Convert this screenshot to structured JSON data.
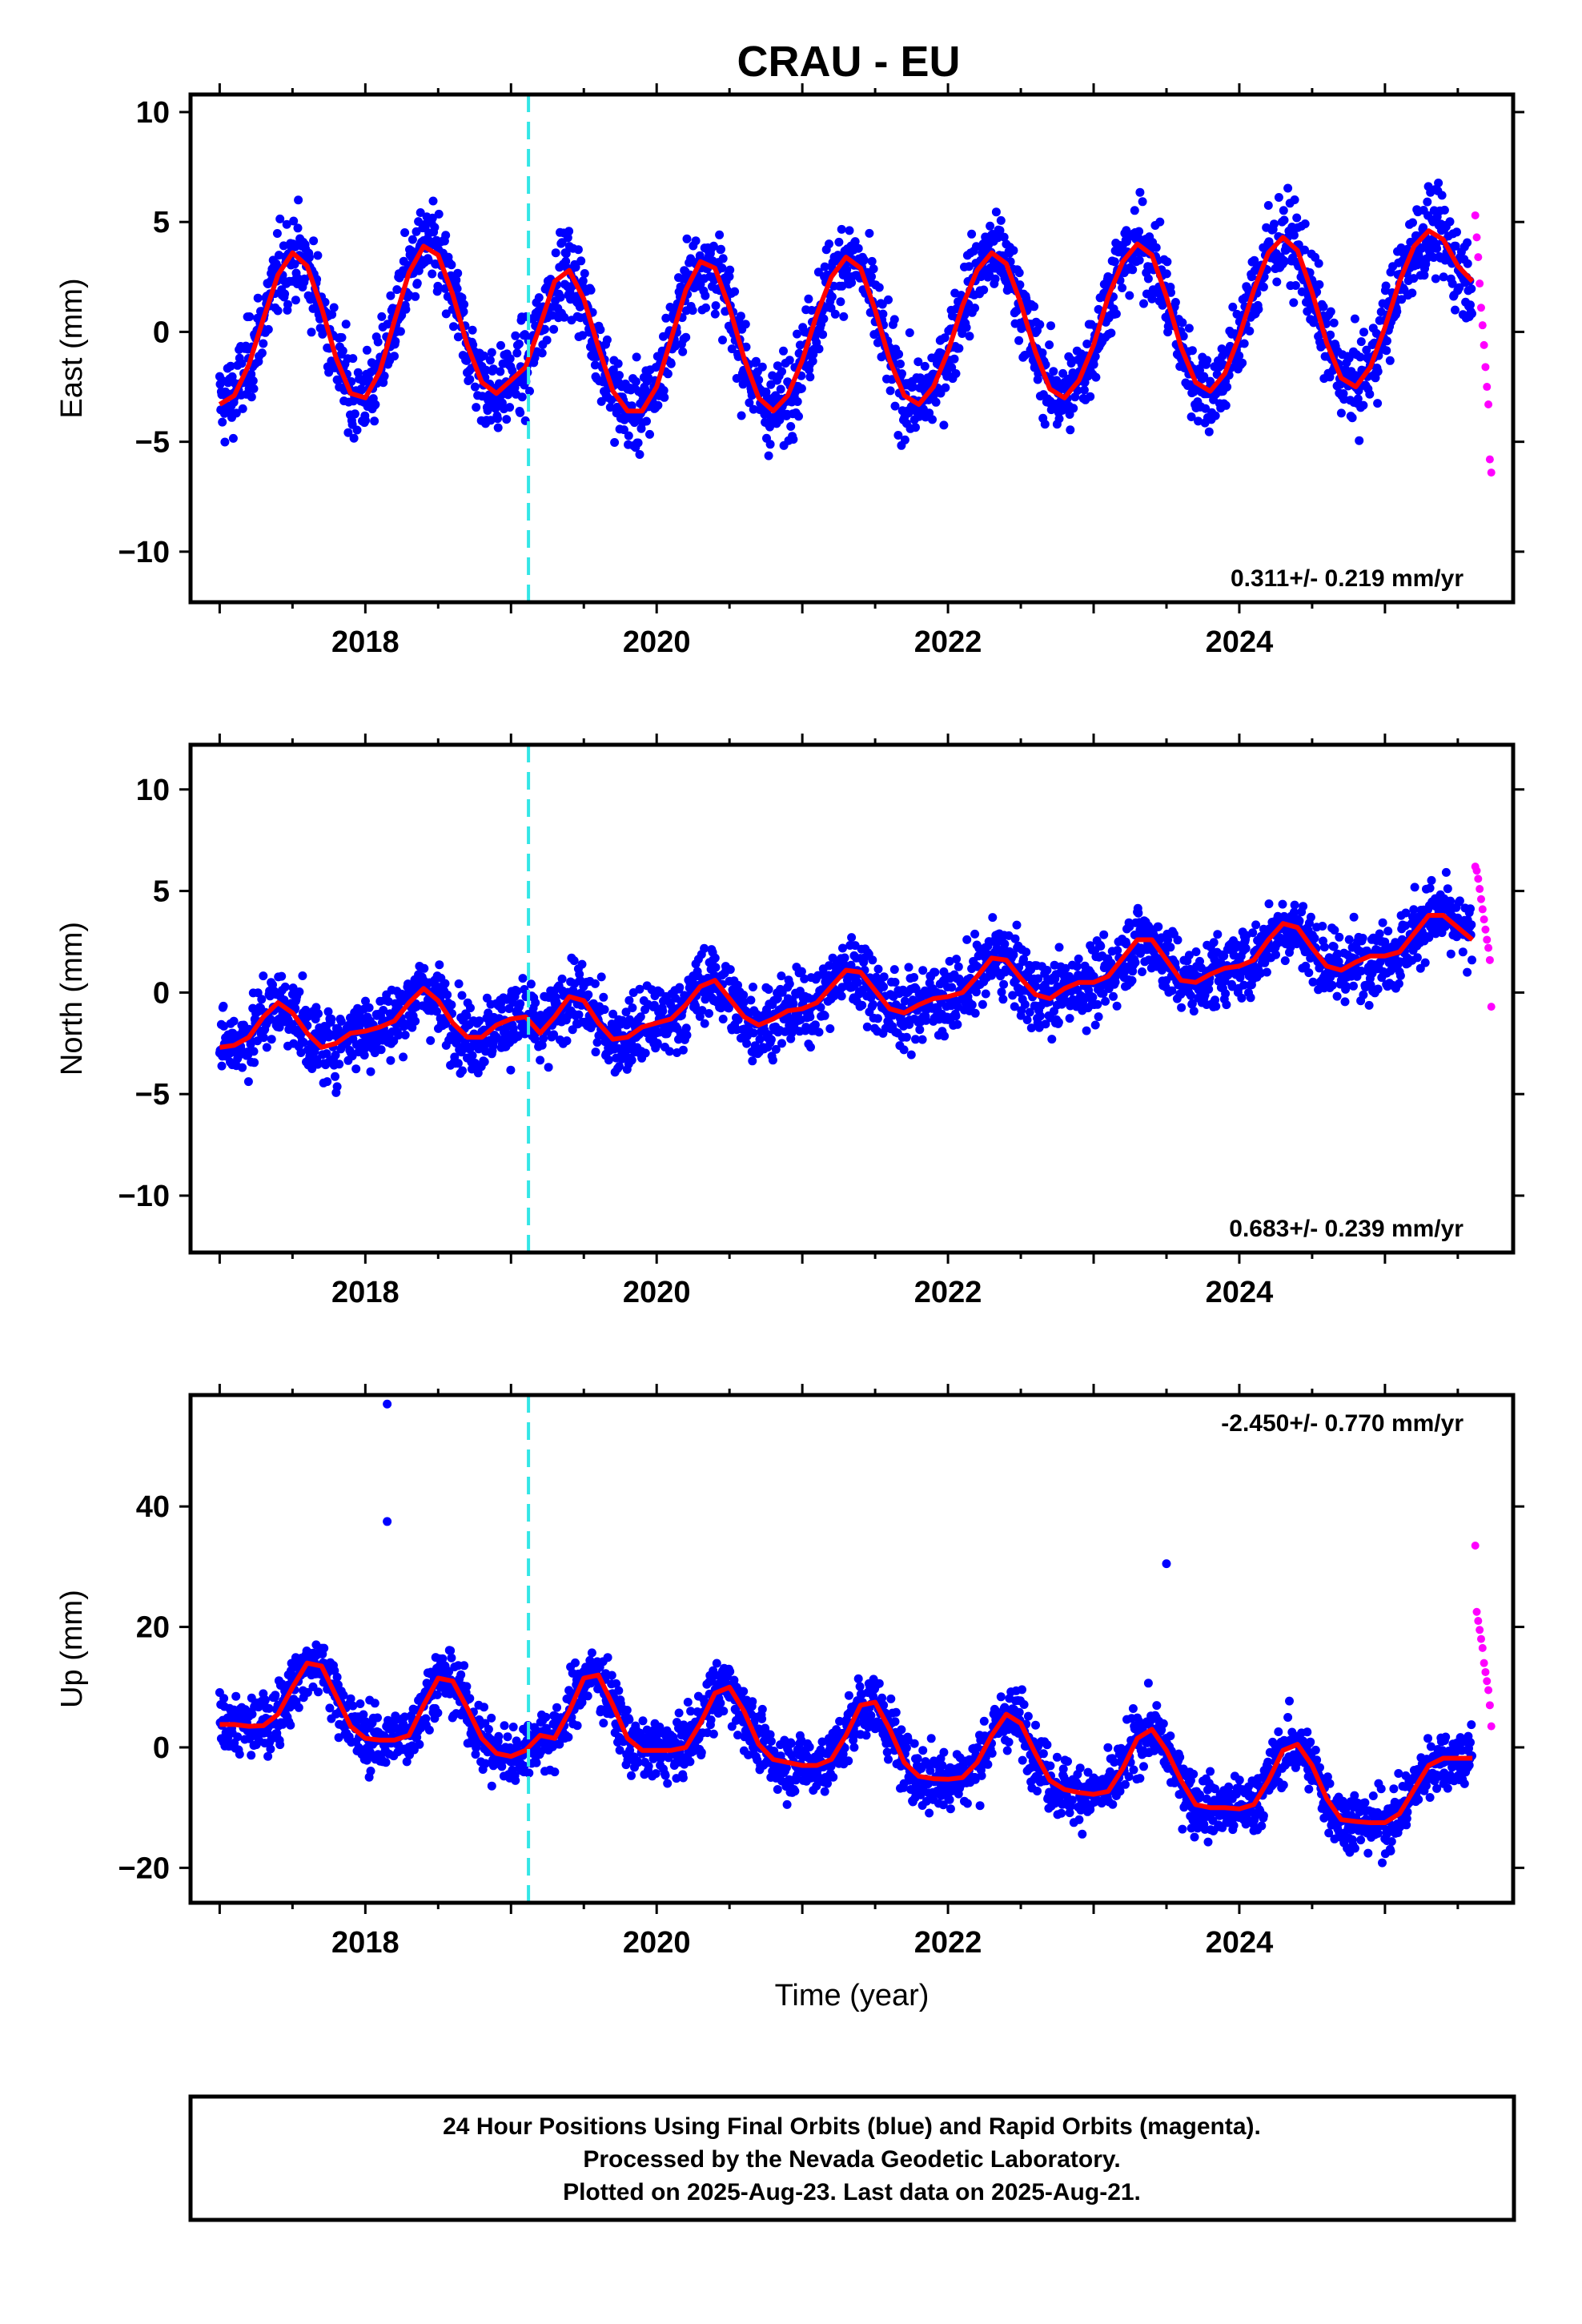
{
  "title": "CRAU - EU",
  "footer": {
    "line1": "24 Hour Positions Using Final Orbits (blue) and Rapid Orbits (magenta).",
    "line2": "Processed by the Nevada Geodetic Laboratory.",
    "line3": "Plotted on 2025-Aug-23. Last data on 2025-Aug-21."
  },
  "colors": {
    "final_orbits": "#0000ff",
    "rapid_orbits": "#ff00ff",
    "model_fit": "#ff0000",
    "equipment_change": "#33e6e6"
  },
  "chart_data": [
    {
      "type": "scatter",
      "name": "east",
      "ylabel": "East (mm)",
      "xlabel": "",
      "xlim": [
        2016.8,
        2025.88
      ],
      "ylim": [
        -12.3,
        10.8
      ],
      "x_ticks": [
        2018,
        2020,
        2022,
        2024
      ],
      "x_tick_labels": [
        "2018",
        "2020",
        "2022",
        "2024"
      ],
      "y_ticks": [
        -10,
        -5,
        0,
        5,
        10
      ],
      "y_tick_labels": [
        "−10",
        "−5",
        "0",
        "5",
        "10"
      ],
      "rate_label": "0.311+/- 0.219 mm/yr",
      "rate_position": "bottom-right",
      "equipment_change_x": 2019.12,
      "model": {
        "trend_mm_per_yr": 0.311,
        "fit_x": [
          2017.0,
          2017.1,
          2017.2,
          2017.3,
          2017.4,
          2017.5,
          2017.6,
          2017.7,
          2017.8,
          2017.9,
          2018.0,
          2018.1,
          2018.2,
          2018.3,
          2018.4,
          2018.5,
          2018.6,
          2018.7,
          2018.8,
          2018.9,
          2019.0,
          2019.1,
          2019.2,
          2019.3,
          2019.4,
          2019.5,
          2019.6,
          2019.7,
          2019.8,
          2019.9,
          2020.0,
          2020.1,
          2020.2,
          2020.3,
          2020.4,
          2020.5,
          2020.6,
          2020.7,
          2020.8,
          2020.9,
          2021.0,
          2021.1,
          2021.2,
          2021.3,
          2021.4,
          2021.5,
          2021.6,
          2021.7,
          2021.8,
          2021.9,
          2022.0,
          2022.1,
          2022.2,
          2022.3,
          2022.4,
          2022.5,
          2022.6,
          2022.7,
          2022.8,
          2022.9,
          2023.0,
          2023.1,
          2023.2,
          2023.3,
          2023.4,
          2023.5,
          2023.6,
          2023.7,
          2023.8,
          2023.9,
          2024.0,
          2024.1,
          2024.2,
          2024.3,
          2024.4,
          2024.5,
          2024.6,
          2024.7,
          2024.8,
          2024.9,
          2025.0,
          2025.1,
          2025.2,
          2025.3,
          2025.4,
          2025.5,
          2025.6
        ],
        "fit_y": [
          -3.3,
          -2.9,
          -1.5,
          0.6,
          2.6,
          3.6,
          3.0,
          1.1,
          -1.2,
          -2.8,
          -3.0,
          -1.8,
          0.5,
          2.7,
          3.9,
          3.5,
          1.7,
          -0.6,
          -2.3,
          -2.8,
          -2.2,
          -1.6,
          0.3,
          2.3,
          2.8,
          1.5,
          -0.7,
          -2.7,
          -3.6,
          -3.6,
          -2.5,
          -0.3,
          1.9,
          3.2,
          2.9,
          1.1,
          -1.2,
          -3.0,
          -3.6,
          -2.9,
          -1.3,
          0.8,
          2.5,
          3.4,
          2.9,
          1.0,
          -1.3,
          -2.9,
          -3.3,
          -2.5,
          -0.9,
          1.2,
          2.8,
          3.6,
          3.1,
          1.3,
          -0.9,
          -2.6,
          -3.0,
          -2.2,
          -0.6,
          1.6,
          3.2,
          4.0,
          3.5,
          1.6,
          -0.7,
          -2.3,
          -2.7,
          -1.9,
          -0.2,
          1.9,
          3.6,
          4.3,
          3.7,
          1.8,
          -0.5,
          -2.1,
          -2.5,
          -1.6,
          0.2,
          2.3,
          3.9,
          4.6,
          4.2,
          3.0,
          2.3
        ]
      },
      "rapid_orbits": {
        "x": [
          2025.62,
          2025.63,
          2025.64,
          2025.65,
          2025.66,
          2025.67,
          2025.68,
          2025.69,
          2025.7,
          2025.71,
          2025.72,
          2025.73
        ],
        "y": [
          5.3,
          4.3,
          3.4,
          2.2,
          1.1,
          0.3,
          -0.6,
          -1.6,
          -2.5,
          -3.3,
          -5.8,
          -6.4
        ]
      }
    },
    {
      "type": "scatter",
      "name": "north",
      "ylabel": "North (mm)",
      "xlabel": "",
      "xlim": [
        2016.8,
        2025.88
      ],
      "ylim": [
        -12.8,
        12.2
      ],
      "x_ticks": [
        2018,
        2020,
        2022,
        2024
      ],
      "x_tick_labels": [
        "2018",
        "2020",
        "2022",
        "2024"
      ],
      "y_ticks": [
        -10,
        -5,
        0,
        5,
        10
      ],
      "y_tick_labels": [
        "−10",
        "−5",
        "0",
        "5",
        "10"
      ],
      "rate_label": "0.683+/- 0.239 mm/yr",
      "rate_position": "bottom-right",
      "equipment_change_x": 2019.12,
      "model": {
        "trend_mm_per_yr": 0.683,
        "fit_x": [
          2017.0,
          2017.1,
          2017.2,
          2017.3,
          2017.4,
          2017.5,
          2017.6,
          2017.7,
          2017.8,
          2017.9,
          2018.0,
          2018.1,
          2018.2,
          2018.3,
          2018.4,
          2018.5,
          2018.6,
          2018.7,
          2018.8,
          2018.9,
          2019.0,
          2019.1,
          2019.2,
          2019.3,
          2019.4,
          2019.5,
          2019.6,
          2019.7,
          2019.8,
          2019.9,
          2020.0,
          2020.1,
          2020.2,
          2020.3,
          2020.4,
          2020.5,
          2020.6,
          2020.7,
          2020.8,
          2020.9,
          2021.0,
          2021.1,
          2021.2,
          2021.3,
          2021.4,
          2021.5,
          2021.6,
          2021.7,
          2021.8,
          2021.9,
          2022.0,
          2022.1,
          2022.2,
          2022.3,
          2022.4,
          2022.5,
          2022.6,
          2022.7,
          2022.8,
          2022.9,
          2023.0,
          2023.1,
          2023.2,
          2023.3,
          2023.4,
          2023.5,
          2023.6,
          2023.7,
          2023.8,
          2023.9,
          2024.0,
          2024.1,
          2024.2,
          2024.3,
          2024.4,
          2024.5,
          2024.6,
          2024.7,
          2024.8,
          2024.9,
          2025.0,
          2025.1,
          2025.2,
          2025.3,
          2025.4,
          2025.5,
          2025.6
        ],
        "fit_y": [
          -2.7,
          -2.6,
          -2.2,
          -1.2,
          -0.5,
          -1.0,
          -2.0,
          -2.7,
          -2.5,
          -2.0,
          -1.9,
          -1.7,
          -1.4,
          -0.5,
          0.2,
          -0.4,
          -1.5,
          -2.2,
          -2.2,
          -1.6,
          -1.3,
          -1.2,
          -2.0,
          -1.2,
          -0.2,
          -0.4,
          -1.5,
          -2.3,
          -2.2,
          -1.7,
          -1.5,
          -1.3,
          -0.6,
          0.3,
          0.6,
          -0.3,
          -1.2,
          -1.6,
          -1.3,
          -0.9,
          -0.8,
          -0.5,
          0.3,
          1.1,
          1.0,
          0.1,
          -0.8,
          -1.0,
          -0.6,
          -0.3,
          -0.2,
          0.0,
          0.8,
          1.7,
          1.6,
          0.7,
          -0.1,
          -0.3,
          0.2,
          0.5,
          0.5,
          0.8,
          1.7,
          2.6,
          2.6,
          1.6,
          0.6,
          0.5,
          0.9,
          1.2,
          1.3,
          1.6,
          2.6,
          3.4,
          3.2,
          2.2,
          1.3,
          1.1,
          1.5,
          1.8,
          1.8,
          2.0,
          2.9,
          3.8,
          3.8,
          3.2,
          2.6
        ]
      },
      "rapid_orbits": {
        "x": [
          2025.62,
          2025.63,
          2025.64,
          2025.65,
          2025.66,
          2025.67,
          2025.68,
          2025.69,
          2025.7,
          2025.71,
          2025.72,
          2025.73
        ],
        "y": [
          6.2,
          6.0,
          5.6,
          5.1,
          4.6,
          4.1,
          3.6,
          3.1,
          2.6,
          2.2,
          1.6,
          -0.7
        ]
      }
    },
    {
      "type": "scatter",
      "name": "up",
      "ylabel": "Up (mm)",
      "xlabel": "Time (year)",
      "xlim": [
        2016.8,
        2025.88
      ],
      "ylim": [
        -25.8,
        58.5
      ],
      "x_ticks": [
        2018,
        2020,
        2022,
        2024
      ],
      "x_tick_labels": [
        "2018",
        "2020",
        "2022",
        "2024"
      ],
      "y_ticks": [
        -20,
        0,
        20,
        40
      ],
      "y_tick_labels": [
        "−20",
        "0",
        "20",
        "40"
      ],
      "rate_label": "-2.450+/- 0.770 mm/yr",
      "rate_position": "top-right",
      "equipment_change_x": 2019.12,
      "model": {
        "trend_mm_per_yr": -2.45,
        "fit_x": [
          2017.0,
          2017.1,
          2017.2,
          2017.3,
          2017.4,
          2017.5,
          2017.6,
          2017.7,
          2017.8,
          2017.9,
          2018.0,
          2018.1,
          2018.2,
          2018.3,
          2018.4,
          2018.5,
          2018.6,
          2018.7,
          2018.8,
          2018.9,
          2019.0,
          2019.1,
          2019.2,
          2019.3,
          2019.4,
          2019.5,
          2019.6,
          2019.7,
          2019.8,
          2019.9,
          2020.0,
          2020.1,
          2020.2,
          2020.3,
          2020.4,
          2020.5,
          2020.6,
          2020.7,
          2020.8,
          2020.9,
          2021.0,
          2021.1,
          2021.2,
          2021.3,
          2021.4,
          2021.5,
          2021.6,
          2021.7,
          2021.8,
          2021.9,
          2022.0,
          2022.1,
          2022.2,
          2022.3,
          2022.4,
          2022.5,
          2022.6,
          2022.7,
          2022.8,
          2022.9,
          2023.0,
          2023.1,
          2023.2,
          2023.3,
          2023.4,
          2023.5,
          2023.6,
          2023.7,
          2023.8,
          2023.9,
          2024.0,
          2024.1,
          2024.2,
          2024.3,
          2024.4,
          2024.5,
          2024.6,
          2024.7,
          2024.8,
          2024.9,
          2025.0,
          2025.1,
          2025.2,
          2025.3,
          2025.4,
          2025.5,
          2025.6
        ],
        "fit_y": [
          3.8,
          3.8,
          3.5,
          3.6,
          5.5,
          10.0,
          14.0,
          13.5,
          8.5,
          3.5,
          1.5,
          1.2,
          1.2,
          2.0,
          7.0,
          11.5,
          11.0,
          6.5,
          1.5,
          -1.0,
          -1.5,
          -0.5,
          2.0,
          1.5,
          6.0,
          11.5,
          12.0,
          7.0,
          1.5,
          -0.5,
          -0.5,
          -0.5,
          0.0,
          4.0,
          9.0,
          10.0,
          6.0,
          0.5,
          -2.0,
          -2.5,
          -3.0,
          -3.0,
          -2.0,
          2.0,
          7.0,
          7.5,
          3.0,
          -2.5,
          -4.8,
          -5.2,
          -5.3,
          -5.0,
          -2.5,
          2.0,
          5.5,
          4.0,
          -1.0,
          -5.5,
          -7.0,
          -7.5,
          -7.8,
          -7.3,
          -3.5,
          1.5,
          3.0,
          -0.5,
          -5.5,
          -9.5,
          -10.0,
          -10.0,
          -10.2,
          -9.5,
          -5.5,
          -0.5,
          0.5,
          -3.0,
          -8.5,
          -12.0,
          -12.3,
          -12.5,
          -12.5,
          -11.0,
          -7.0,
          -3.0,
          -1.8,
          -1.8,
          -1.8
        ]
      },
      "outliers": {
        "x": [
          2018.15,
          2018.15,
          2023.5
        ],
        "y": [
          57.0,
          37.5,
          30.5
        ]
      },
      "rapid_orbits": {
        "x": [
          2025.62,
          2025.63,
          2025.64,
          2025.65,
          2025.66,
          2025.67,
          2025.68,
          2025.69,
          2025.7,
          2025.71,
          2025.72,
          2025.73
        ],
        "y": [
          33.5,
          22.5,
          21.0,
          19.5,
          18.0,
          16.5,
          14.0,
          12.5,
          11.0,
          9.5,
          7.0,
          3.5
        ]
      }
    }
  ]
}
